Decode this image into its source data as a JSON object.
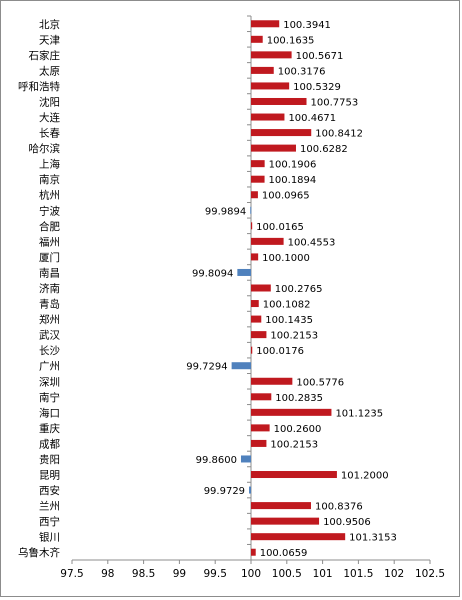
{
  "chart_data": {
    "type": "bar",
    "orientation": "horizontal",
    "title": "",
    "xlabel": "",
    "ylabel": "",
    "baseline": 100,
    "xlim": [
      97.5,
      102.5
    ],
    "xticks": [
      "97.5",
      "98",
      "98.5",
      "99",
      "99.5",
      "100",
      "100.5",
      "101",
      "101.5",
      "102",
      "102.5"
    ],
    "grid": false,
    "legend": "none",
    "colors": {
      "positive": "#c0191f",
      "negative": "#4f81bd",
      "axis": "#8c8c8c"
    },
    "categories": [
      "北京",
      "天津",
      "石家庄",
      "太原",
      "呼和浩特",
      "沈阳",
      "大连",
      "长春",
      "哈尔滨",
      "上海",
      "南京",
      "杭州",
      "宁波",
      "合肥",
      "福州",
      "厦门",
      "南昌",
      "济南",
      "青岛",
      "郑州",
      "武汉",
      "长沙",
      "广州",
      "深圳",
      "南宁",
      "海口",
      "重庆",
      "成都",
      "贵阳",
      "昆明",
      "西安",
      "兰州",
      "西宁",
      "银川",
      "乌鲁木齐"
    ],
    "values": [
      100.3941,
      100.1635,
      100.5671,
      100.3176,
      100.5329,
      100.7753,
      100.4671,
      100.8412,
      100.6282,
      100.1906,
      100.1894,
      100.0965,
      99.9894,
      100.0165,
      100.4553,
      100.1,
      99.8094,
      100.2765,
      100.1082,
      100.1435,
      100.2153,
      100.0176,
      99.7294,
      100.5776,
      100.2835,
      101.1235,
      100.26,
      100.2153,
      99.86,
      101.2,
      99.9729,
      100.8376,
      100.9506,
      101.3153,
      100.0659
    ],
    "data_labels": [
      "100.3941",
      "100.1635",
      "100.5671",
      "100.3176",
      "100.5329",
      "100.7753",
      "100.4671",
      "100.8412",
      "100.6282",
      "100.1906",
      "100.1894",
      "100.0965",
      "99.9894",
      "100.0165",
      "100.4553",
      "100.1000",
      "99.8094",
      "100.2765",
      "100.1082",
      "100.1435",
      "100.2153",
      "100.0176",
      "99.7294",
      "100.5776",
      "100.2835",
      "101.1235",
      "100.2600",
      "100.2153",
      "99.8600",
      "101.2000",
      "99.9729",
      "100.8376",
      "100.9506",
      "101.3153",
      "100.0659"
    ]
  }
}
